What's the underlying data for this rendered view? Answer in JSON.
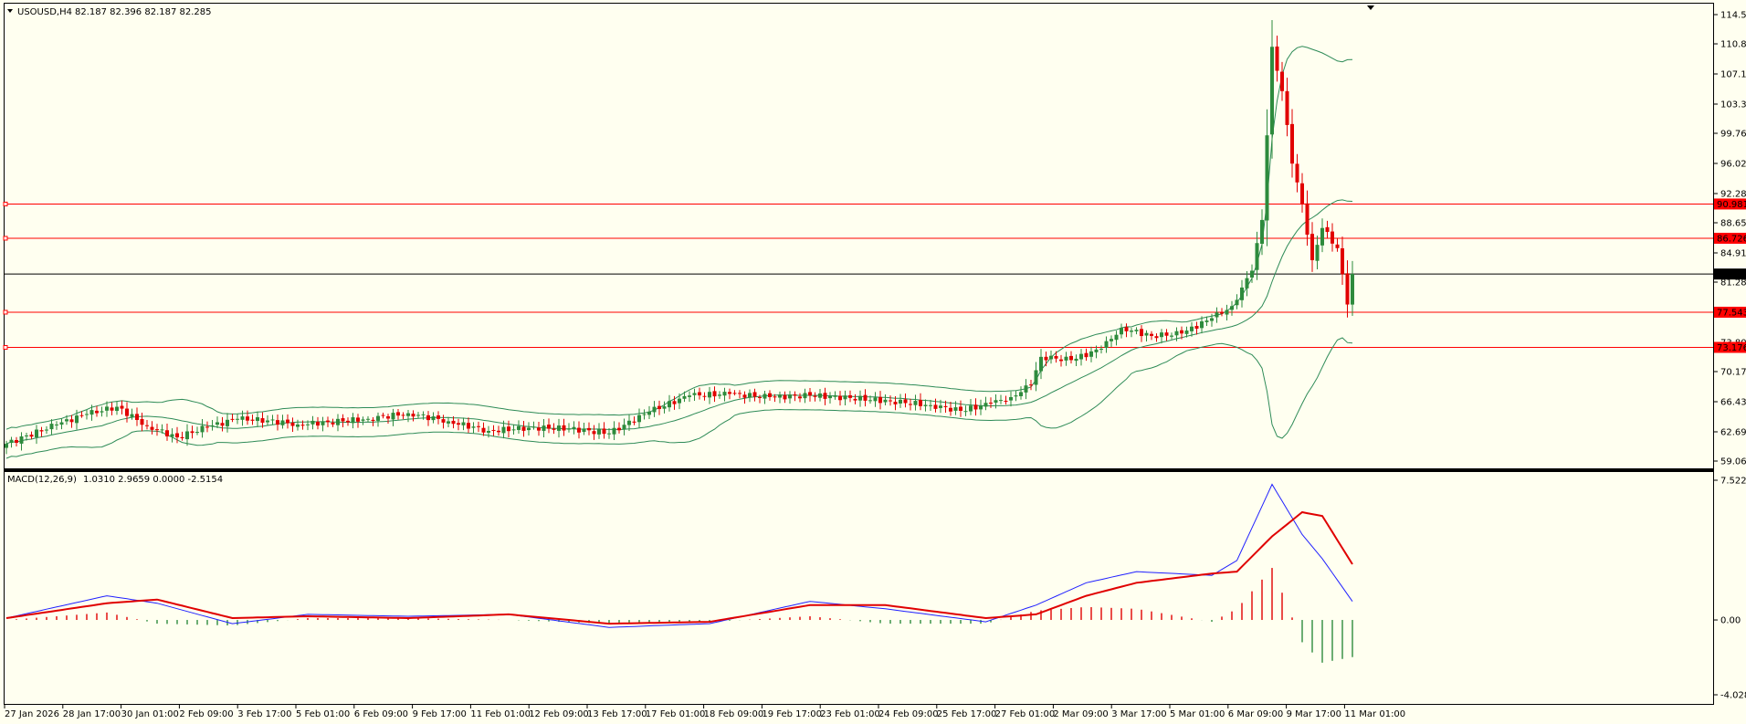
{
  "window": {
    "symbol_header": "USOUSD,H4",
    "ohlc_header": "82.187 82.396 82.187 82.285",
    "macd_header": "MACD(12,26,9)",
    "macd_values": "1.0310 2.9659 0.0000 -2.5154"
  },
  "colors": {
    "background": "#fffff0",
    "bull": "#2e8b3d",
    "bear": "#e10000",
    "bands": "#2e8b57",
    "hline": "#ff0000",
    "price_line": "#000000",
    "macd_line": "#2020ff",
    "signal_line": "#e00000"
  },
  "price_axis": {
    "ticks": [
      "114.50",
      "110.87",
      "107.13",
      "103.39",
      "99.760",
      "96.020",
      "92.280",
      "88.650",
      "84.910",
      "81.280",
      "77.540",
      "73.800",
      "70.170",
      "66.430",
      "62.690",
      "59.060"
    ],
    "current_price": "82.285",
    "levels": [
      {
        "value": "90.981"
      },
      {
        "value": "86.726"
      },
      {
        "value": "77.543"
      },
      {
        "value": "73.176"
      }
    ]
  },
  "macd_axis": {
    "ticks": [
      "7.5221",
      "0.00",
      "-4.0285"
    ]
  },
  "time_axis": {
    "labels": [
      "27 Jan 2026",
      "28 Jan 17:00",
      "30 Jan 01:00",
      "2 Feb 09:00",
      "3 Feb 17:00",
      "5 Feb 01:00",
      "6 Feb 09:00",
      "9 Feb 17:00",
      "11 Feb 01:00",
      "12 Feb 09:00",
      "13 Feb 17:00",
      "17 Feb 01:00",
      "18 Feb 09:00",
      "19 Feb 17:00",
      "23 Feb 01:00",
      "24 Feb 09:00",
      "25 Feb 17:00",
      "27 Feb 01:00",
      "2 Mar 09:00",
      "3 Mar 17:00",
      "5 Mar 01:00",
      "6 Mar 09:00",
      "9 Mar 17:00",
      "11 Mar 01:00"
    ]
  },
  "chart_data": {
    "type": "candlestick",
    "symbol": "USOUSD",
    "timeframe": "H4",
    "price_range": [
      59.06,
      114.5
    ],
    "macd_range": [
      -4.0285,
      7.5221
    ],
    "anchors": [
      {
        "i": 0,
        "c": 61.2
      },
      {
        "i": 10,
        "c": 63.6
      },
      {
        "i": 16,
        "c": 64.9
      },
      {
        "i": 22,
        "c": 65.8
      },
      {
        "i": 28,
        "c": 63.4
      },
      {
        "i": 34,
        "c": 62.0
      },
      {
        "i": 40,
        "c": 63.3
      },
      {
        "i": 46,
        "c": 64.3
      },
      {
        "i": 52,
        "c": 64.1
      },
      {
        "i": 58,
        "c": 63.6
      },
      {
        "i": 64,
        "c": 63.9
      },
      {
        "i": 72,
        "c": 64.3
      },
      {
        "i": 80,
        "c": 65.0
      },
      {
        "i": 88,
        "c": 64.0
      },
      {
        "i": 96,
        "c": 62.8
      },
      {
        "i": 104,
        "c": 63.2
      },
      {
        "i": 112,
        "c": 63.1
      },
      {
        "i": 120,
        "c": 62.5
      },
      {
        "i": 128,
        "c": 65.2
      },
      {
        "i": 136,
        "c": 67.2
      },
      {
        "i": 144,
        "c": 67.4
      },
      {
        "i": 152,
        "c": 67.0
      },
      {
        "i": 160,
        "c": 67.2
      },
      {
        "i": 168,
        "c": 66.9
      },
      {
        "i": 176,
        "c": 66.5
      },
      {
        "i": 184,
        "c": 66.0
      },
      {
        "i": 190,
        "c": 65.3
      },
      {
        "i": 196,
        "c": 66.2
      },
      {
        "i": 200,
        "c": 67.0
      },
      {
        "i": 204,
        "c": 68.5
      },
      {
        "i": 206,
        "c": 72.0
      },
      {
        "i": 212,
        "c": 71.6
      },
      {
        "i": 218,
        "c": 73.0
      },
      {
        "i": 222,
        "c": 75.6
      },
      {
        "i": 228,
        "c": 74.6
      },
      {
        "i": 234,
        "c": 74.9
      },
      {
        "i": 240,
        "c": 76.8
      },
      {
        "i": 244,
        "c": 78.3
      },
      {
        "i": 248,
        "c": 82.7
      },
      {
        "i": 250,
        "c": 89.0
      },
      {
        "i": 252,
        "c": 110.5
      },
      {
        "i": 254,
        "c": 105.0
      },
      {
        "i": 256,
        "c": 96.0
      },
      {
        "i": 258,
        "c": 91.0
      },
      {
        "i": 260,
        "c": 84.0
      },
      {
        "i": 262,
        "c": 88.0
      },
      {
        "i": 265,
        "c": 85.5
      },
      {
        "i": 267,
        "c": 78.5
      },
      {
        "i": 268,
        "c": 82.3
      }
    ],
    "macd_anchors": [
      {
        "i": 0,
        "m": 0.1,
        "s": 0.1
      },
      {
        "i": 20,
        "m": 1.3,
        "s": 0.9
      },
      {
        "i": 30,
        "m": 0.9,
        "s": 1.1
      },
      {
        "i": 45,
        "m": -0.2,
        "s": 0.1
      },
      {
        "i": 60,
        "m": 0.3,
        "s": 0.2
      },
      {
        "i": 80,
        "m": 0.2,
        "s": 0.1
      },
      {
        "i": 100,
        "m": 0.3,
        "s": 0.3
      },
      {
        "i": 120,
        "m": -0.4,
        "s": -0.2
      },
      {
        "i": 140,
        "m": -0.2,
        "s": -0.1
      },
      {
        "i": 160,
        "m": 1.0,
        "s": 0.8
      },
      {
        "i": 175,
        "m": 0.6,
        "s": 0.8
      },
      {
        "i": 195,
        "m": -0.1,
        "s": 0.1
      },
      {
        "i": 205,
        "m": 0.8,
        "s": 0.3
      },
      {
        "i": 215,
        "m": 2.0,
        "s": 1.3
      },
      {
        "i": 225,
        "m": 2.6,
        "s": 2.0
      },
      {
        "i": 240,
        "m": 2.4,
        "s": 2.5
      },
      {
        "i": 245,
        "m": 3.2,
        "s": 2.6
      },
      {
        "i": 252,
        "m": 7.3,
        "s": 4.5
      },
      {
        "i": 258,
        "m": 4.6,
        "s": 5.8
      },
      {
        "i": 262,
        "m": 3.3,
        "s": 5.6
      },
      {
        "i": 268,
        "m": 1.0,
        "s": 3.0
      }
    ]
  }
}
